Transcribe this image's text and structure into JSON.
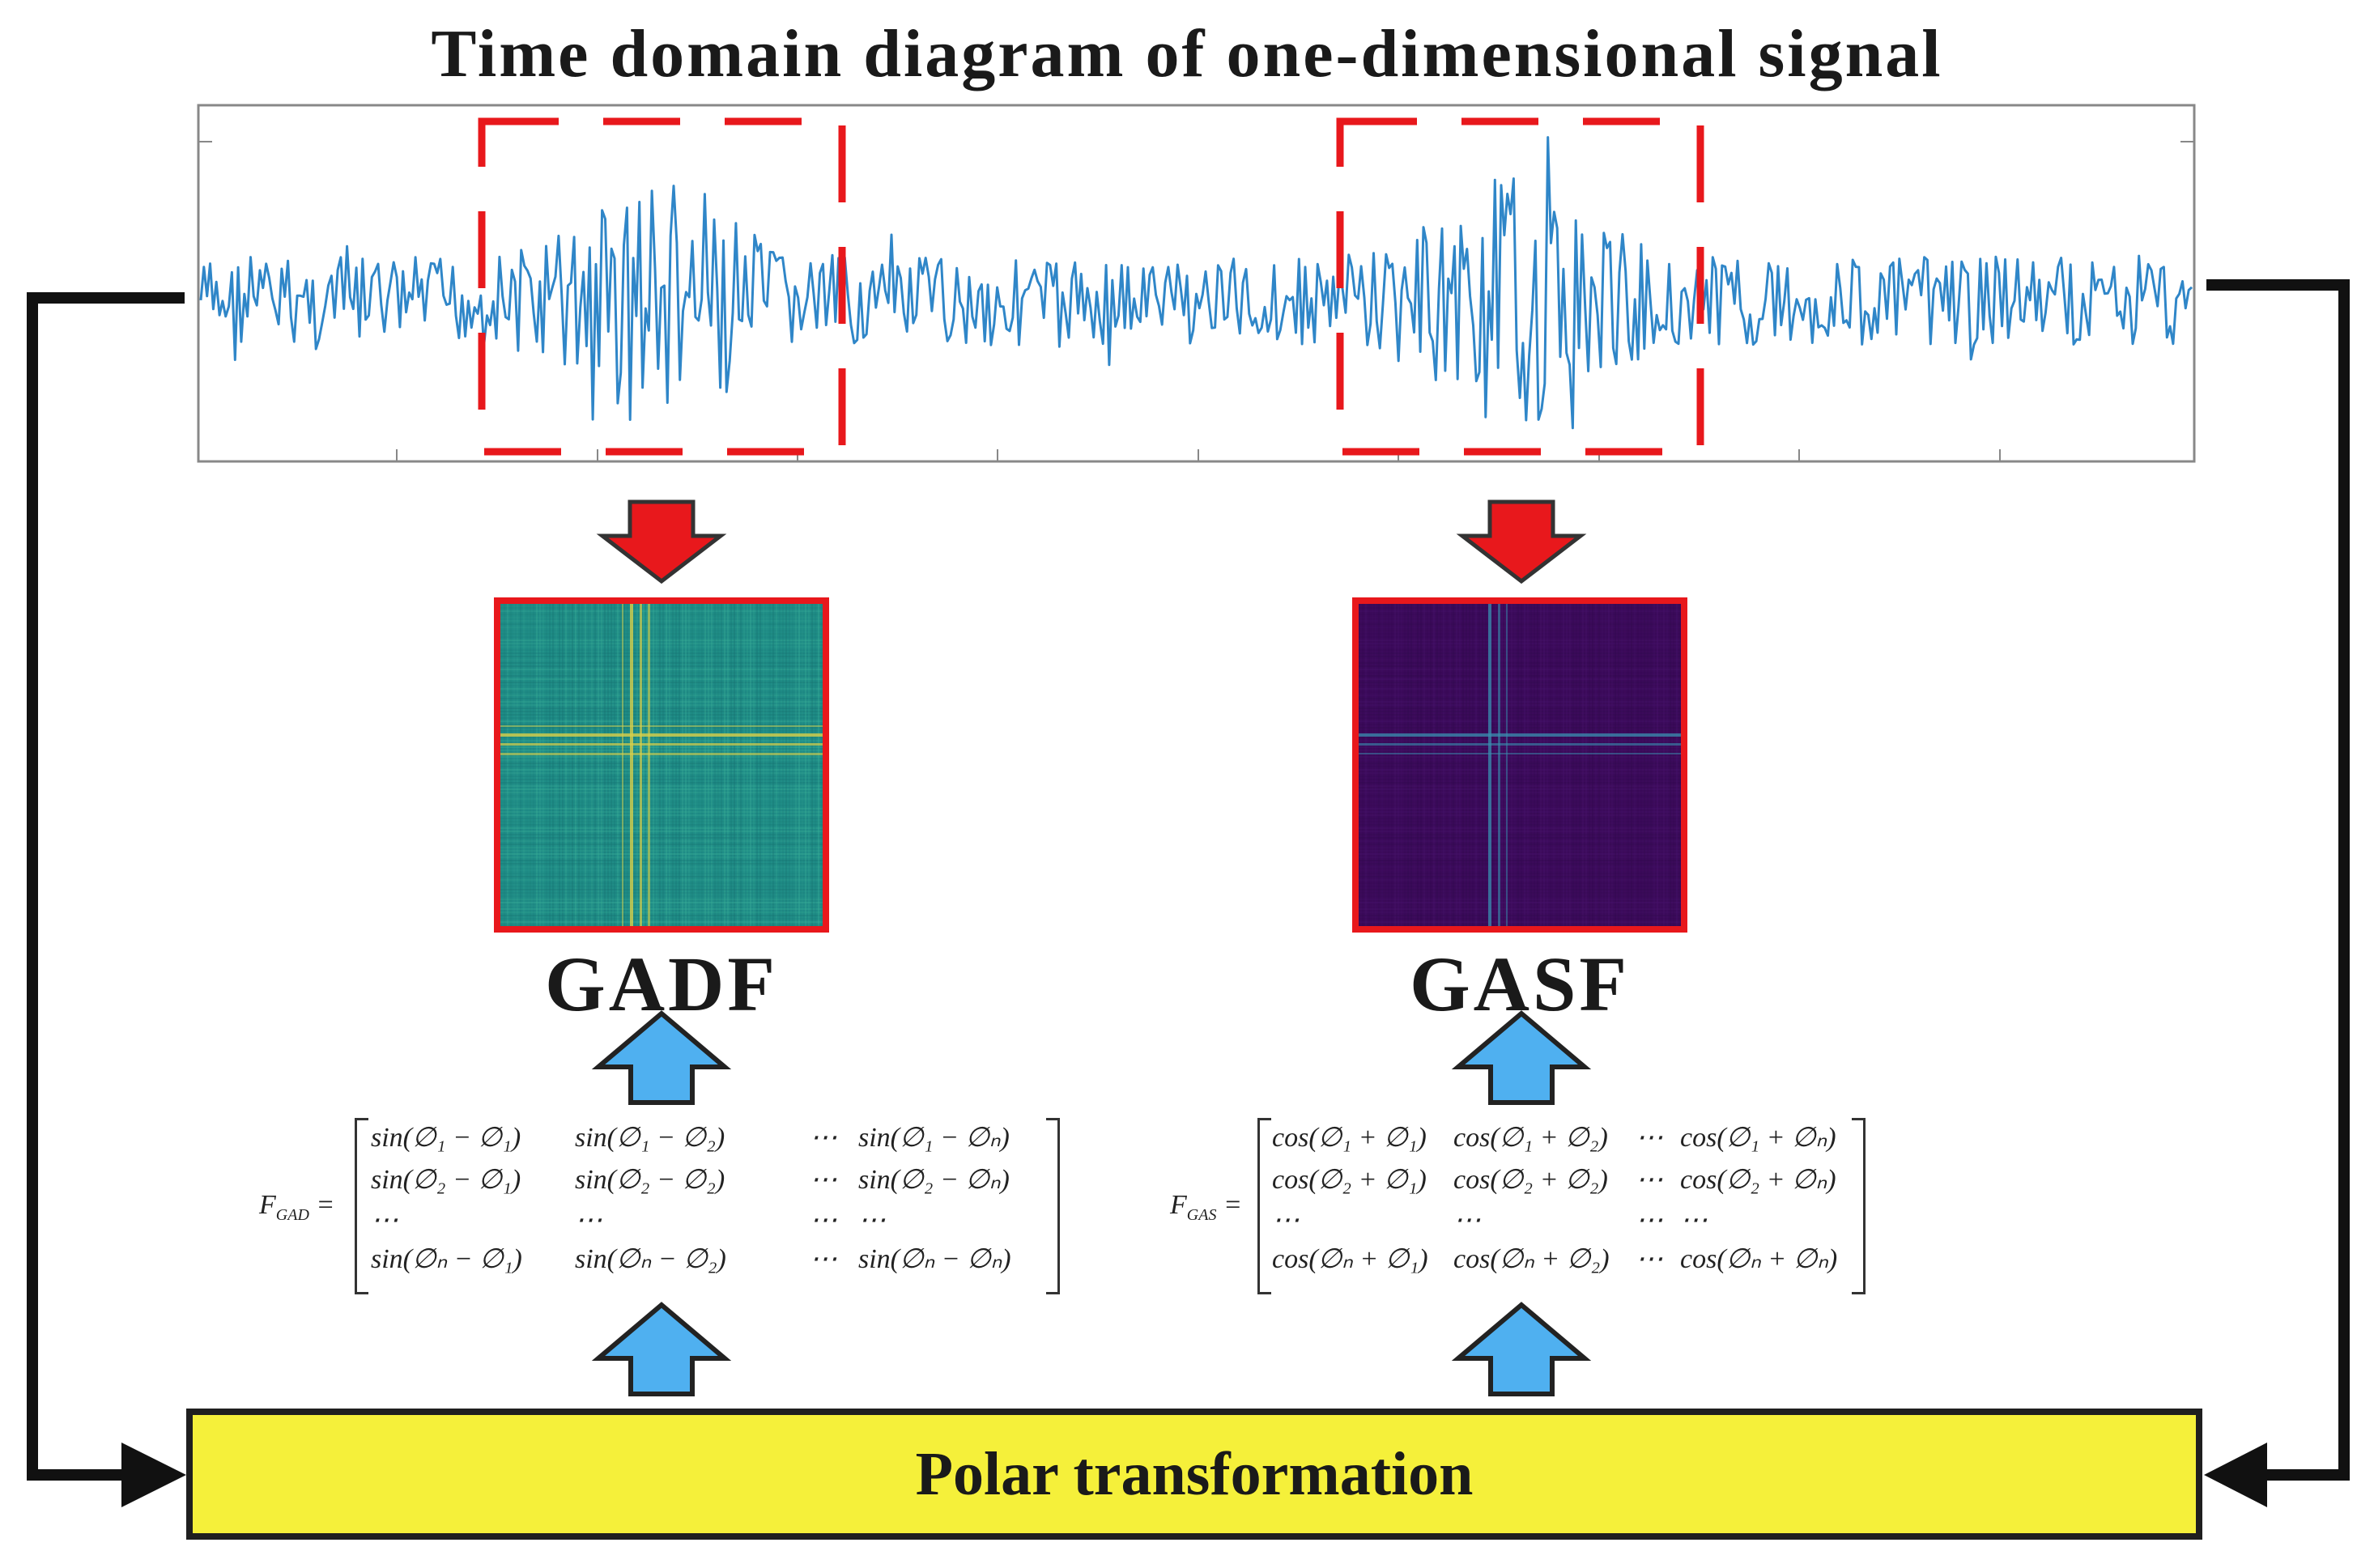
{
  "title": "Time domain diagram of one-dimensional signal",
  "images": {
    "gadf_label": "GADF",
    "gasf_label": "GASF"
  },
  "polar_box": {
    "label": "Polar transformation"
  },
  "gadf_matrix": {
    "lhs": "F",
    "lhs_sub": "GAD",
    "rows": [
      [
        "sin(∅₁ − ∅₁)",
        "sin(∅₁ − ∅₂)",
        "⋯",
        "sin(∅₁ − ∅ₙ)"
      ],
      [
        "sin(∅₂ − ∅₁)",
        "sin(∅₂ − ∅₂)",
        "⋯",
        "sin(∅₂ − ∅ₙ)"
      ],
      [
        "⋯",
        "⋯",
        "⋯",
        "⋯"
      ],
      [
        "sin(∅ₙ − ∅₁)",
        "sin(∅ₙ − ∅₂)",
        "⋯",
        "sin(∅ₙ − ∅ₙ)"
      ]
    ]
  },
  "gasf_matrix": {
    "lhs": "F",
    "lhs_sub": "GAS",
    "rows": [
      [
        "cos(∅₁ + ∅₁)",
        "cos(∅₁ + ∅₂)",
        "⋯",
        "cos(∅₁ + ∅ₙ)"
      ],
      [
        "cos(∅₂ + ∅₁)",
        "cos(∅₂ + ∅₂)",
        "⋯",
        "cos(∅₂ + ∅ₙ)"
      ],
      [
        "⋯",
        "⋯",
        "⋯",
        "⋯"
      ],
      [
        "cos(∅ₙ + ∅₁)",
        "cos(∅ₙ + ∅₂)",
        "⋯",
        "cos(∅ₙ + ∅ₙ)"
      ]
    ]
  },
  "colors": {
    "signal": "#2f86c8",
    "highlight": "#e8181c",
    "up_arrow": "#4fb0f0",
    "polar_fill": "#f5f03a",
    "gadf_base": "#1f8c86",
    "gasf_base": "#3b0a5a"
  }
}
